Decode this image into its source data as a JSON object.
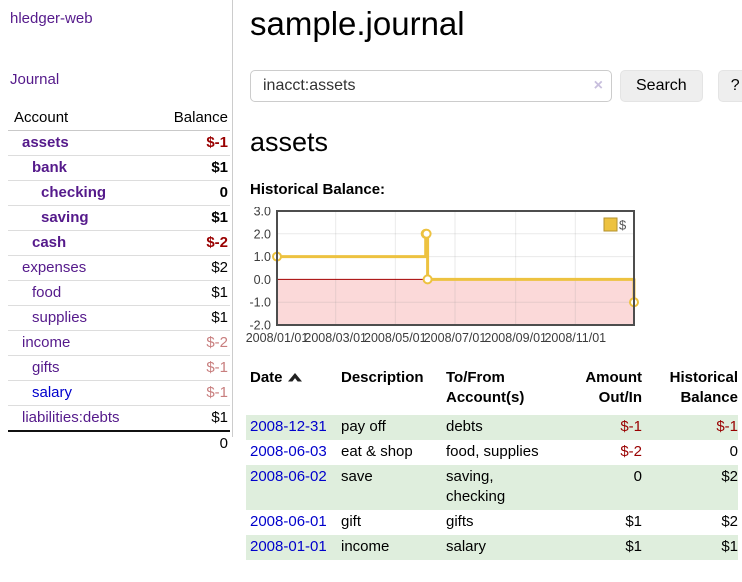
{
  "app": {
    "brand": "hledger-web"
  },
  "nav": {
    "journal_label": "Journal"
  },
  "palette": {
    "purple": "#551a8b",
    "link_blue": "#0000cc",
    "neg_red": "#990000",
    "muted_red": "#c87e7e",
    "row_green": "#dfeedd",
    "btn_bg": "#eeeeee"
  },
  "sidebar": {
    "columns": {
      "account": "Account",
      "balance": "Balance"
    },
    "accounts": [
      {
        "name": "assets",
        "depth": 1,
        "bold": true,
        "link_color": "purple",
        "balance": "$-1",
        "balance_style": "neg"
      },
      {
        "name": "bank",
        "depth": 2,
        "bold": true,
        "link_color": "purple",
        "balance": "$1",
        "balance_style": "pos"
      },
      {
        "name": "checking",
        "depth": 3,
        "bold": true,
        "link_color": "purple",
        "balance": "0",
        "balance_style": "pos"
      },
      {
        "name": "saving",
        "depth": 3,
        "bold": true,
        "link_color": "purple",
        "balance": "$1",
        "balance_style": "pos"
      },
      {
        "name": "cash",
        "depth": 2,
        "bold": true,
        "link_color": "purple",
        "balance": "$-2",
        "balance_style": "neg"
      },
      {
        "name": "expenses",
        "depth": 1,
        "bold": false,
        "link_color": "purple",
        "balance": "$2",
        "balance_style": "pos"
      },
      {
        "name": "food",
        "depth": 2,
        "bold": false,
        "link_color": "purple",
        "balance": "$1",
        "balance_style": "pos"
      },
      {
        "name": "supplies",
        "depth": 2,
        "bold": false,
        "link_color": "purple",
        "balance": "$1",
        "balance_style": "pos"
      },
      {
        "name": "income",
        "depth": 1,
        "bold": false,
        "link_color": "purple",
        "balance": "$-2",
        "balance_style": "muted"
      },
      {
        "name": "gifts",
        "depth": 2,
        "bold": false,
        "link_color": "purple",
        "balance": "$-1",
        "balance_style": "muted"
      },
      {
        "name": "salary",
        "depth": 2,
        "bold": false,
        "link_color": "blue",
        "balance": "$-1",
        "balance_style": "muted"
      },
      {
        "name": "liabilities:debts",
        "depth": 1,
        "bold": false,
        "link_color": "purple",
        "balance": "$1",
        "balance_style": "pos"
      }
    ],
    "total": "0"
  },
  "header": {
    "title": "sample.journal"
  },
  "search": {
    "value": "inacct:assets",
    "clear_glyph": "×",
    "button_label": "Search",
    "help_label": "?"
  },
  "account_page": {
    "heading": "assets",
    "chart_label": "Historical Balance:"
  },
  "chart_data": {
    "type": "line",
    "title": "Historical Balance",
    "line_shape": "step-after",
    "series": [
      {
        "name": "$",
        "points": [
          {
            "x": "2008-01-01",
            "y": 1
          },
          {
            "x": "2008-06-01",
            "y": 2
          },
          {
            "x": "2008-06-02",
            "y": 2
          },
          {
            "x": "2008-06-03",
            "y": 0
          },
          {
            "x": "2008-12-31",
            "y": -1
          }
        ]
      }
    ],
    "x_range": [
      "2008-01-01",
      "2008-12-31"
    ],
    "x_tick_labels": [
      "2008/01/01",
      "2008/03/01",
      "2008/05/01",
      "2008/07/01",
      "2008/09/01",
      "2008/11/01"
    ],
    "y_ticks": [
      3,
      2,
      1,
      0,
      -1,
      -2
    ],
    "y_tick_labels": [
      "3.0",
      "2.0",
      "1.0",
      "0.0",
      "-1.0",
      "-2.0"
    ],
    "ylim": [
      -2,
      3
    ],
    "grid": true,
    "legend": {
      "label": "$",
      "position": "top-right"
    },
    "colors": {
      "line": "#edc240",
      "marker_fill": "#ffffff",
      "negative_fill": "#fbd9d9",
      "zero_line": "#a40000",
      "grid": "#888888",
      "border": "#4d4d4d",
      "tick_text": "#3c3c3c",
      "legend_border": "#b3922e",
      "legend_text": "#555555"
    }
  },
  "register": {
    "columns": {
      "date": "Date",
      "description": "Description",
      "accounts": "To/From Account(s)",
      "amount": "Amount Out/In",
      "balance": "Historical Balance"
    },
    "rows": [
      {
        "date": "2008-12-31",
        "description": "pay off",
        "accounts": "debts",
        "amount": "$-1",
        "amount_style": "neg",
        "balance": "$-1",
        "balance_style": "neg"
      },
      {
        "date": "2008-06-03",
        "description": "eat & shop",
        "accounts": "food, supplies",
        "amount": "$-2",
        "amount_style": "neg",
        "balance": "0",
        "balance_style": "pos"
      },
      {
        "date": "2008-06-02",
        "description": "save",
        "accounts": "saving, checking",
        "amount": "0",
        "amount_style": "pos",
        "balance": "$2",
        "balance_style": "pos"
      },
      {
        "date": "2008-06-01",
        "description": "gift",
        "accounts": "gifts",
        "amount": "$1",
        "amount_style": "pos",
        "balance": "$2",
        "balance_style": "pos"
      },
      {
        "date": "2008-01-01",
        "description": "income",
        "accounts": "salary",
        "amount": "$1",
        "amount_style": "pos",
        "balance": "$1",
        "balance_style": "pos"
      }
    ]
  }
}
